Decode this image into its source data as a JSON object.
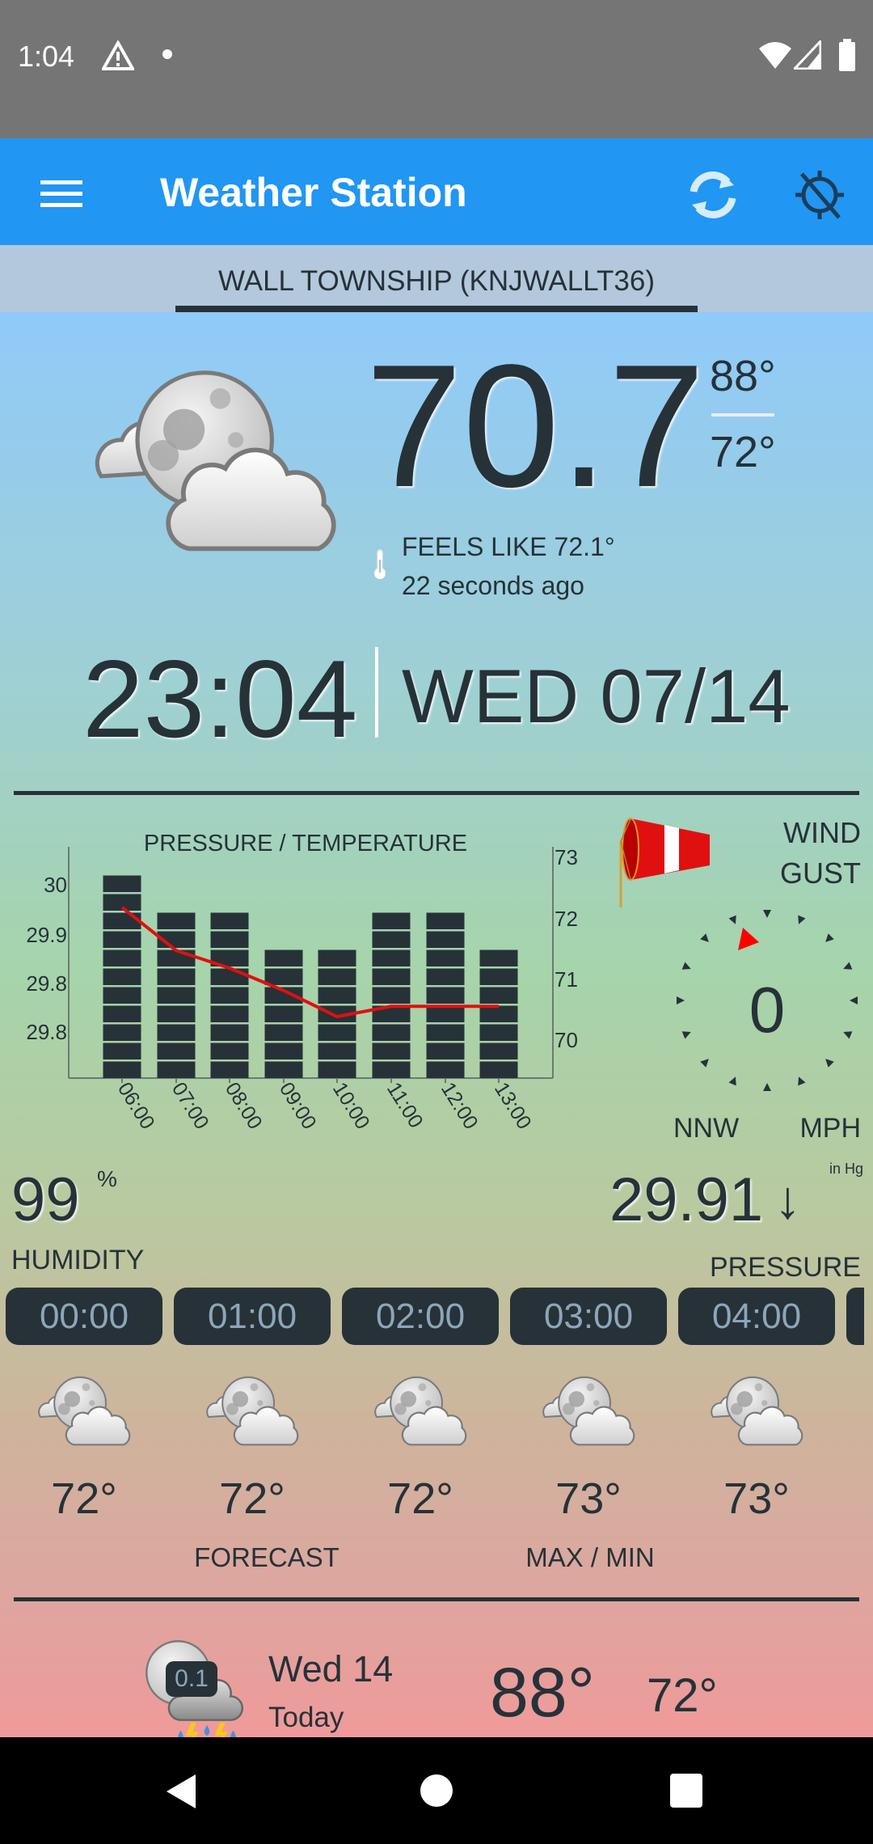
{
  "colors": {
    "app_bar": "#2196f3",
    "status_bar": "#757575",
    "station_bar": "#b3c8dc",
    "text": "#263238",
    "pill_bg": "#263238",
    "pill_text": "#8ea5bb",
    "temp_line": "#e01010",
    "wind_pointer": "#ff0000"
  },
  "status_bar": {
    "time": "1:04",
    "icons": [
      "warning-icon",
      "dot-icon",
      "wifi-icon",
      "signal-icon",
      "battery-icon"
    ]
  },
  "app_bar": {
    "title": "Weather Station",
    "icons": [
      "menu-icon",
      "refresh-icon",
      "gps-off-icon"
    ]
  },
  "station": {
    "name": "WALL TOWNSHIP (KNJWALLT36)"
  },
  "current": {
    "icon": "night-partly-cloudy",
    "temperature": "70.7",
    "high": "88°",
    "low": "72°",
    "feels_like": "FEELS LIKE 72.1°",
    "updated": "22 seconds ago"
  },
  "clock": {
    "time": "23:04",
    "date": "WED 07/14"
  },
  "wind": {
    "label_wind": "WIND",
    "label_gust": "GUST",
    "speed": "0",
    "direction": "NNW",
    "unit": "MPH"
  },
  "humidity": {
    "value": "99",
    "unit": "%",
    "label": "HUMIDITY"
  },
  "pressure": {
    "value": "29.91",
    "trend": "↓",
    "unit": "in Hg",
    "label": "PRESSURE"
  },
  "hourly": {
    "items": [
      {
        "time": "00:00",
        "temp": "72°",
        "icon": "night-partly-cloudy"
      },
      {
        "time": "01:00",
        "temp": "72°",
        "icon": "night-partly-cloudy"
      },
      {
        "time": "02:00",
        "temp": "72°",
        "icon": "night-partly-cloudy"
      },
      {
        "time": "03:00",
        "temp": "73°",
        "icon": "night-partly-cloudy"
      },
      {
        "time": "04:00",
        "temp": "73°",
        "icon": "night-partly-cloudy"
      }
    ],
    "label_forecast": "FORECAST",
    "label_maxmin": "MAX / MIN"
  },
  "daily": [
    {
      "day": "Wed 14",
      "subtitle": "Today",
      "high": "88°",
      "low": "72°",
      "precip": "0.1",
      "icon": "night-thunderstorm"
    }
  ],
  "chart_data": {
    "type": "bar+line",
    "title": "PRESSURE / TEMPERATURE",
    "categories": [
      "06:00",
      "07:00",
      "08:00",
      "09:00",
      "10:00",
      "11:00",
      "12:00",
      "13:00"
    ],
    "series": [
      {
        "axis": "left",
        "type": "bar",
        "values": [
          30.01,
          29.97,
          29.97,
          29.93,
          29.93,
          29.97,
          29.97,
          29.93
        ]
      },
      {
        "axis": "right",
        "type": "line",
        "values": [
          72.16,
          71.45,
          71.16,
          70.79,
          70.36,
          70.53,
          70.53,
          70.53
        ]
      }
    ],
    "left_ticks": [
      "30",
      "29.9",
      "29.8",
      "29.8"
    ],
    "right_ticks": [
      "73",
      "72",
      "71",
      "70"
    ],
    "grid": false
  }
}
